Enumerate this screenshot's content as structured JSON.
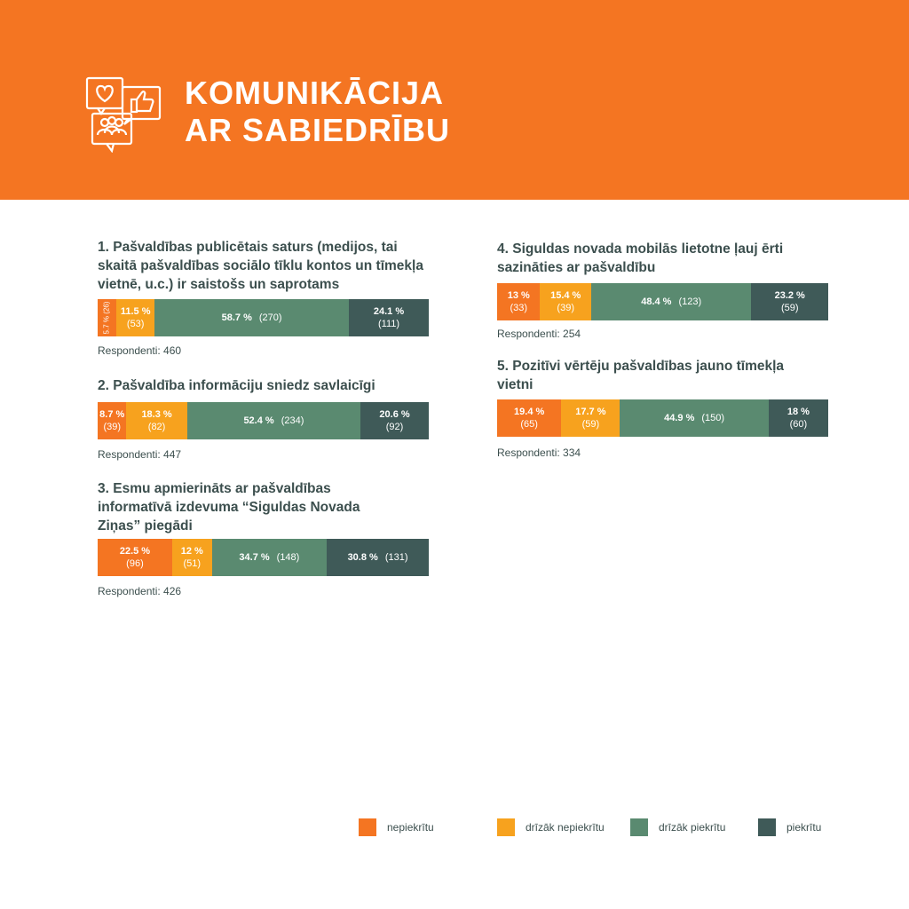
{
  "header": {
    "title_line1": "KOMUNIKĀCIJA",
    "title_line2": "AR SABIEDRĪBU"
  },
  "colors": {
    "nepiekritu": "#F47522",
    "drizak_nepiekritu": "#F7A21E",
    "drizak_piekritu": "#5A8A70",
    "piekritu": "#3F5A58"
  },
  "chart_data": [
    {
      "type": "bar",
      "stacked": true,
      "title": "1. Pašvaldības publicētais saturs (medijos, tai skaitā pašvaldības sociālo tīklu kontos un tīmekļa vietnē, u.c.) ir saistošs un saprotams",
      "percent": [
        5.7,
        11.5,
        58.7,
        24.1
      ],
      "counts": [
        26,
        53,
        270,
        111
      ],
      "respondents": "Respondenti: 460"
    },
    {
      "type": "bar",
      "stacked": true,
      "title": "2. Pašvaldība informāciju sniedz savlaicīgi",
      "percent": [
        8.7,
        18.3,
        52.4,
        20.6
      ],
      "counts": [
        39,
        82,
        234,
        92
      ],
      "respondents": "Respondenti: 447"
    },
    {
      "type": "bar",
      "stacked": true,
      "title": "3. Esmu apmierināts ar pašvaldības informatīvā izdevuma “Siguldas Novada Ziņas” piegādi",
      "percent": [
        22.5,
        12,
        34.7,
        30.8
      ],
      "counts": [
        96,
        51,
        148,
        131
      ],
      "respondents": "Respondenti: 426"
    },
    {
      "type": "bar",
      "stacked": true,
      "title": "4. Siguldas novada mobilās lietotne ļauj ērti sazināties ar pašvaldību",
      "percent": [
        13,
        15.4,
        48.4,
        23.2
      ],
      "counts": [
        33,
        39,
        123,
        59
      ],
      "respondents": "Respondenti: 254"
    },
    {
      "type": "bar",
      "stacked": true,
      "title": "5. Pozitīvi vērtēju pašvaldības jauno tīmekļa vietni",
      "percent": [
        19.4,
        17.7,
        44.9,
        18
      ],
      "counts": [
        65,
        59,
        150,
        60
      ],
      "respondents": "Respondenti: 334"
    }
  ],
  "legend": [
    "nepiekrītu",
    "drīzāk nepiekrītu",
    "drīzāk piekrītu",
    "piekrītu"
  ]
}
